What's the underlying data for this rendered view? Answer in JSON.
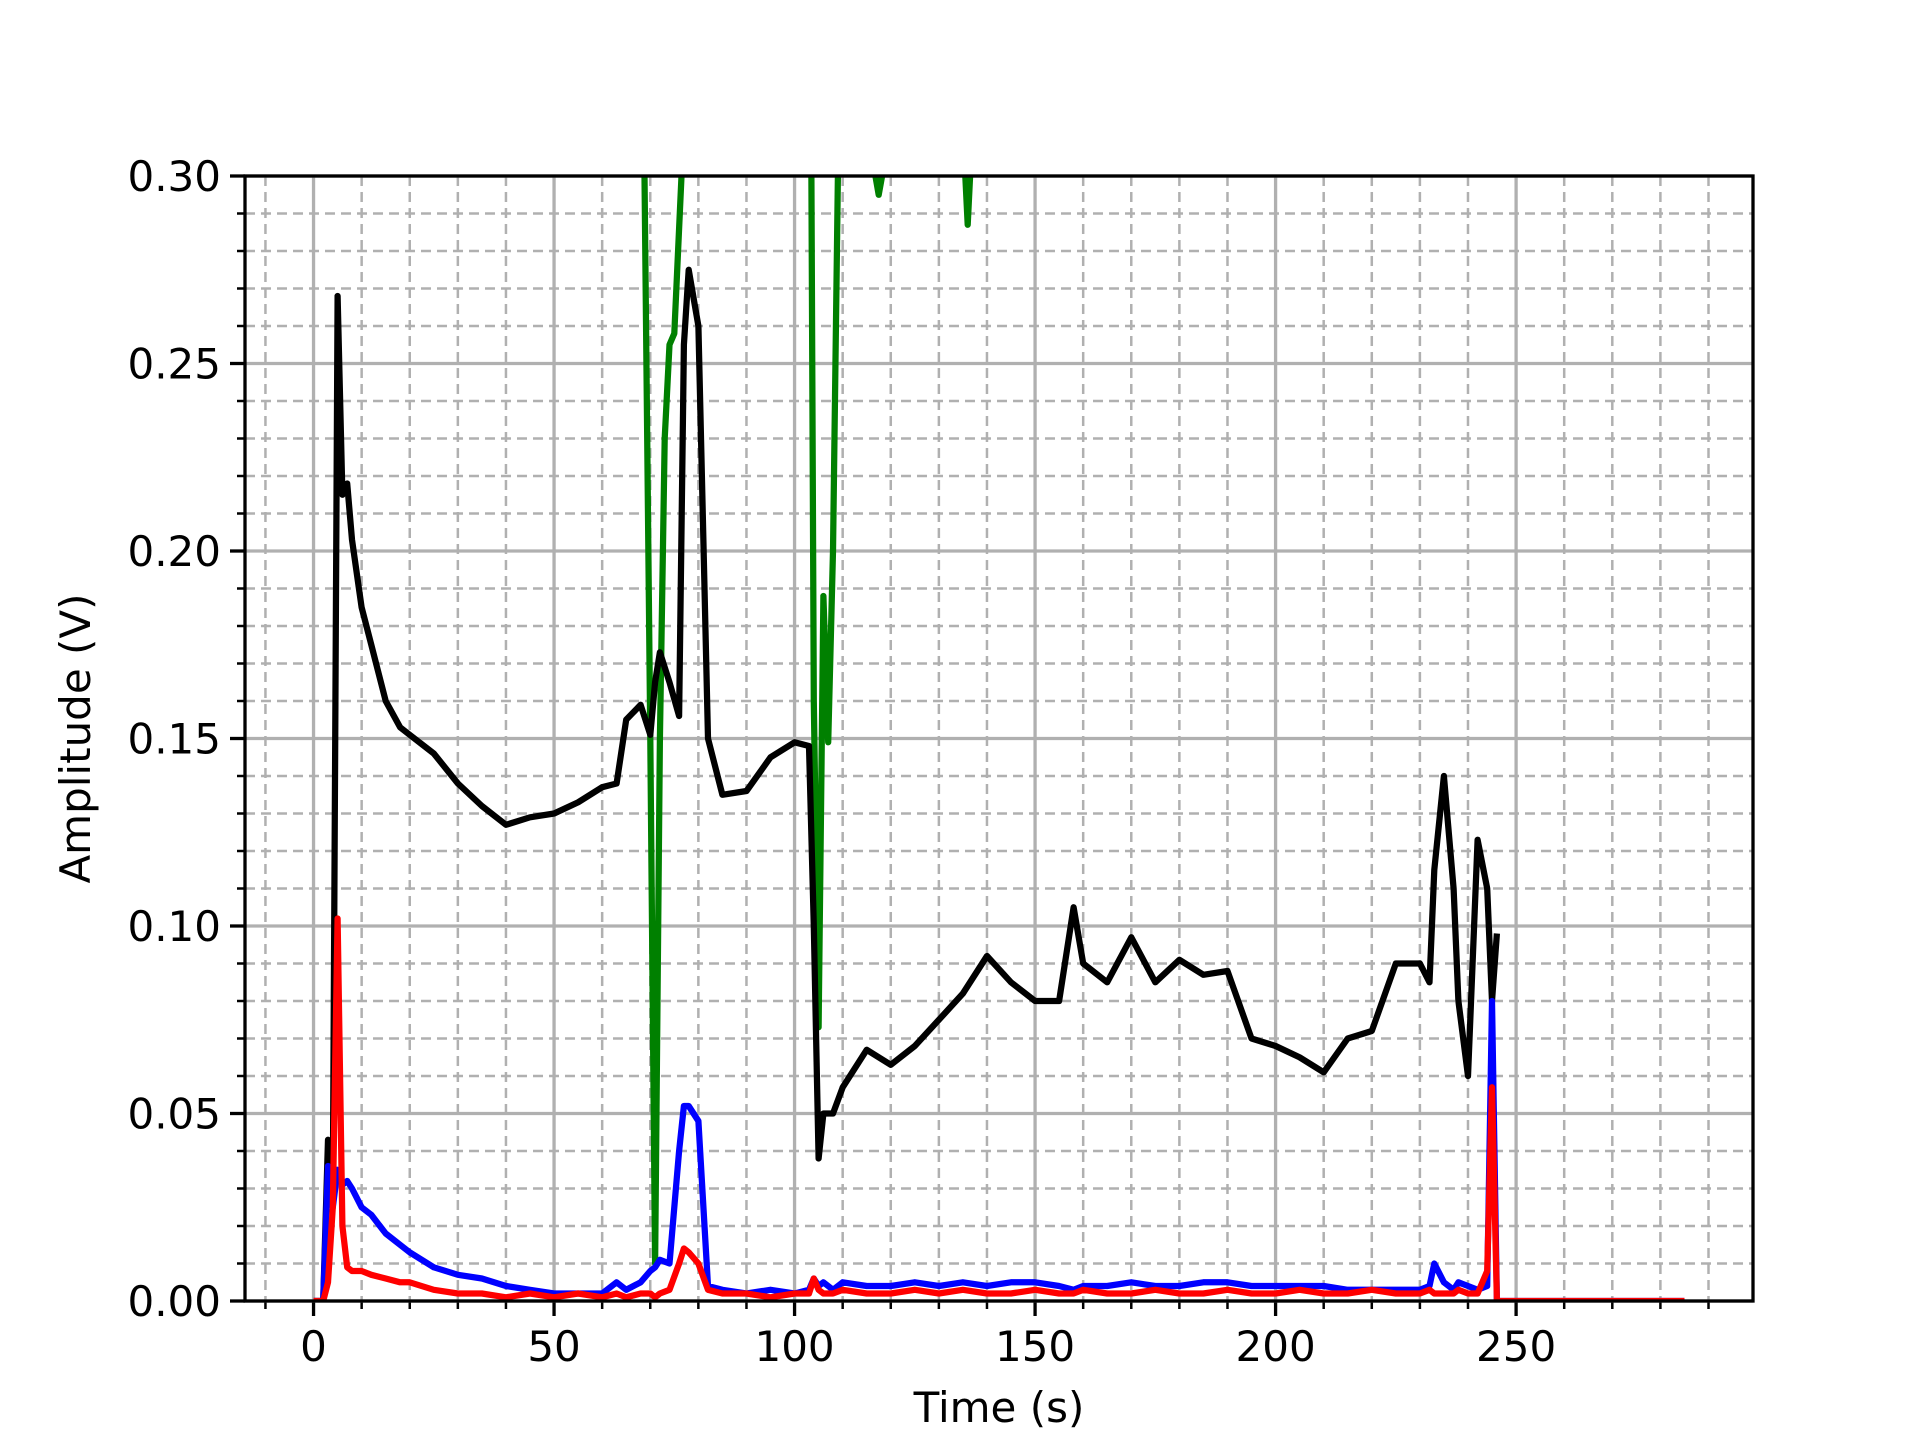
{
  "chart_data": {
    "type": "line",
    "xlabel": "Time (s)",
    "ylabel": "Amplitude (V)",
    "x": [
      0,
      2,
      3,
      4,
      5,
      6,
      7,
      8,
      10,
      12,
      15,
      18,
      20,
      25,
      30,
      35,
      40,
      45,
      50,
      55,
      60,
      63,
      65,
      68,
      70,
      71,
      72,
      74,
      76,
      77,
      78,
      80,
      82,
      85,
      90,
      95,
      100,
      103,
      104,
      105,
      106,
      108,
      110,
      115,
      120,
      125,
      130,
      135,
      140,
      145,
      150,
      155,
      158,
      160,
      165,
      170,
      175,
      180,
      185,
      190,
      195,
      200,
      205,
      210,
      215,
      220,
      225,
      230,
      232,
      233,
      235,
      237,
      238,
      240,
      242,
      244,
      245,
      246,
      250,
      260,
      270,
      285
    ],
    "series": [
      {
        "name": "green",
        "color": "#008000",
        "x": [
          68.8,
          70,
          71,
          72,
          73,
          74,
          75,
          76.5,
          90,
          103.5,
          104,
          105,
          106,
          107,
          108,
          109,
          113,
          116.8,
          117.5,
          118.2,
          125,
          135.5,
          136,
          136.5
        ],
        "values": [
          0.3,
          0.15,
          0.01,
          0.15,
          0.23,
          0.255,
          0.258,
          0.3,
          null,
          0.3,
          0.16,
          0.073,
          0.188,
          0.149,
          0.2,
          0.3,
          null,
          0.3,
          0.295,
          0.3,
          null,
          0.3,
          0.287,
          0.3
        ]
      },
      {
        "name": "black",
        "color": "#000000",
        "values": [
          0,
          0,
          0.043,
          0.03,
          0.268,
          0.215,
          0.218,
          0.203,
          0.185,
          0.175,
          0.16,
          0.153,
          0.151,
          0.146,
          0.138,
          0.132,
          0.127,
          0.129,
          0.13,
          0.133,
          0.137,
          0.138,
          0.155,
          0.159,
          0.151,
          0.165,
          0.173,
          0.165,
          0.156,
          0.255,
          0.275,
          0.26,
          0.15,
          0.135,
          0.136,
          0.145,
          0.149,
          0.148,
          0.1,
          0.038,
          0.05,
          0.05,
          0.057,
          0.067,
          0.063,
          0.068,
          0.075,
          0.082,
          0.092,
          0.085,
          0.08,
          0.08,
          0.105,
          0.09,
          0.085,
          0.097,
          0.085,
          0.091,
          0.087,
          0.088,
          0.07,
          0.068,
          0.065,
          0.061,
          0.07,
          0.072,
          0.09,
          0.09,
          0.085,
          0.115,
          0.14,
          0.11,
          0.08,
          0.06,
          0.123,
          0.11,
          0.08,
          0.098,
          null,
          null,
          null,
          null
        ]
      },
      {
        "name": "blue",
        "color": "#0000ff",
        "values": [
          0,
          0,
          0.036,
          0.025,
          0.035,
          0.031,
          0.032,
          0.03,
          0.025,
          0.023,
          0.018,
          0.015,
          0.013,
          0.009,
          0.007,
          0.006,
          0.004,
          0.003,
          0.002,
          0.002,
          0.002,
          0.005,
          0.003,
          0.005,
          0.008,
          0.009,
          0.011,
          0.01,
          0.04,
          0.052,
          0.052,
          0.048,
          0.004,
          0.003,
          0.002,
          0.003,
          0.002,
          0.003,
          0.006,
          0.004,
          0.005,
          0.003,
          0.005,
          0.004,
          0.004,
          0.005,
          0.004,
          0.005,
          0.004,
          0.005,
          0.005,
          0.004,
          0.003,
          0.004,
          0.004,
          0.005,
          0.004,
          0.004,
          0.005,
          0.005,
          0.004,
          0.004,
          0.004,
          0.004,
          0.003,
          0.003,
          0.003,
          0.003,
          0.004,
          0.01,
          0.005,
          0.003,
          0.005,
          0.004,
          0.003,
          0.004,
          0.08,
          0,
          0,
          0,
          0,
          0
        ]
      },
      {
        "name": "red",
        "color": "#ff0000",
        "values": [
          0,
          0,
          0.005,
          0.025,
          0.102,
          0.02,
          0.009,
          0.008,
          0.008,
          0.007,
          0.006,
          0.005,
          0.005,
          0.003,
          0.002,
          0.002,
          0.001,
          0.002,
          0.001,
          0.002,
          0.001,
          0.002,
          0.001,
          0.002,
          0.002,
          0.001,
          0.002,
          0.003,
          0.01,
          0.014,
          0.013,
          0.01,
          0.003,
          0.002,
          0.002,
          0.001,
          0.002,
          0.002,
          0.006,
          0.003,
          0.002,
          0.002,
          0.003,
          0.002,
          0.002,
          0.003,
          0.002,
          0.003,
          0.002,
          0.002,
          0.003,
          0.002,
          0.002,
          0.003,
          0.002,
          0.002,
          0.003,
          0.002,
          0.002,
          0.003,
          0.002,
          0.002,
          0.003,
          0.002,
          0.002,
          0.003,
          0.002,
          0.002,
          0.003,
          0.002,
          0.002,
          0.002,
          0.003,
          0.002,
          0.002,
          0.008,
          0.057,
          0,
          0,
          0,
          0,
          0
        ]
      }
    ],
    "xlim": [
      -14.25,
      299.25
    ],
    "ylim": [
      0,
      0.3
    ],
    "xticks": [
      0,
      50,
      100,
      150,
      200,
      250
    ],
    "yticks": [
      {
        "value": 0,
        "label": "0.00"
      },
      {
        "value": 0.05,
        "label": "0.05"
      },
      {
        "value": 0.1,
        "label": "0.10"
      },
      {
        "value": 0.15,
        "label": "0.15"
      },
      {
        "value": 0.2,
        "label": "0.20"
      },
      {
        "value": 0.25,
        "label": "0.25"
      },
      {
        "value": 0.3,
        "label": "0.30"
      }
    ],
    "x_minor_ticks": [
      -10,
      10,
      20,
      30,
      40,
      60,
      70,
      80,
      90,
      110,
      120,
      130,
      140,
      160,
      170,
      180,
      190,
      210,
      220,
      230,
      240,
      260,
      270,
      280,
      290
    ],
    "y_minor_ticks": [
      0.01,
      0.02,
      0.03,
      0.04,
      0.06,
      0.07,
      0.08,
      0.09,
      0.11,
      0.12,
      0.13,
      0.14,
      0.16,
      0.17,
      0.18,
      0.19,
      0.21,
      0.22,
      0.23,
      0.24,
      0.26,
      0.27,
      0.28,
      0.29
    ],
    "grid": true,
    "minor_grid": true
  }
}
